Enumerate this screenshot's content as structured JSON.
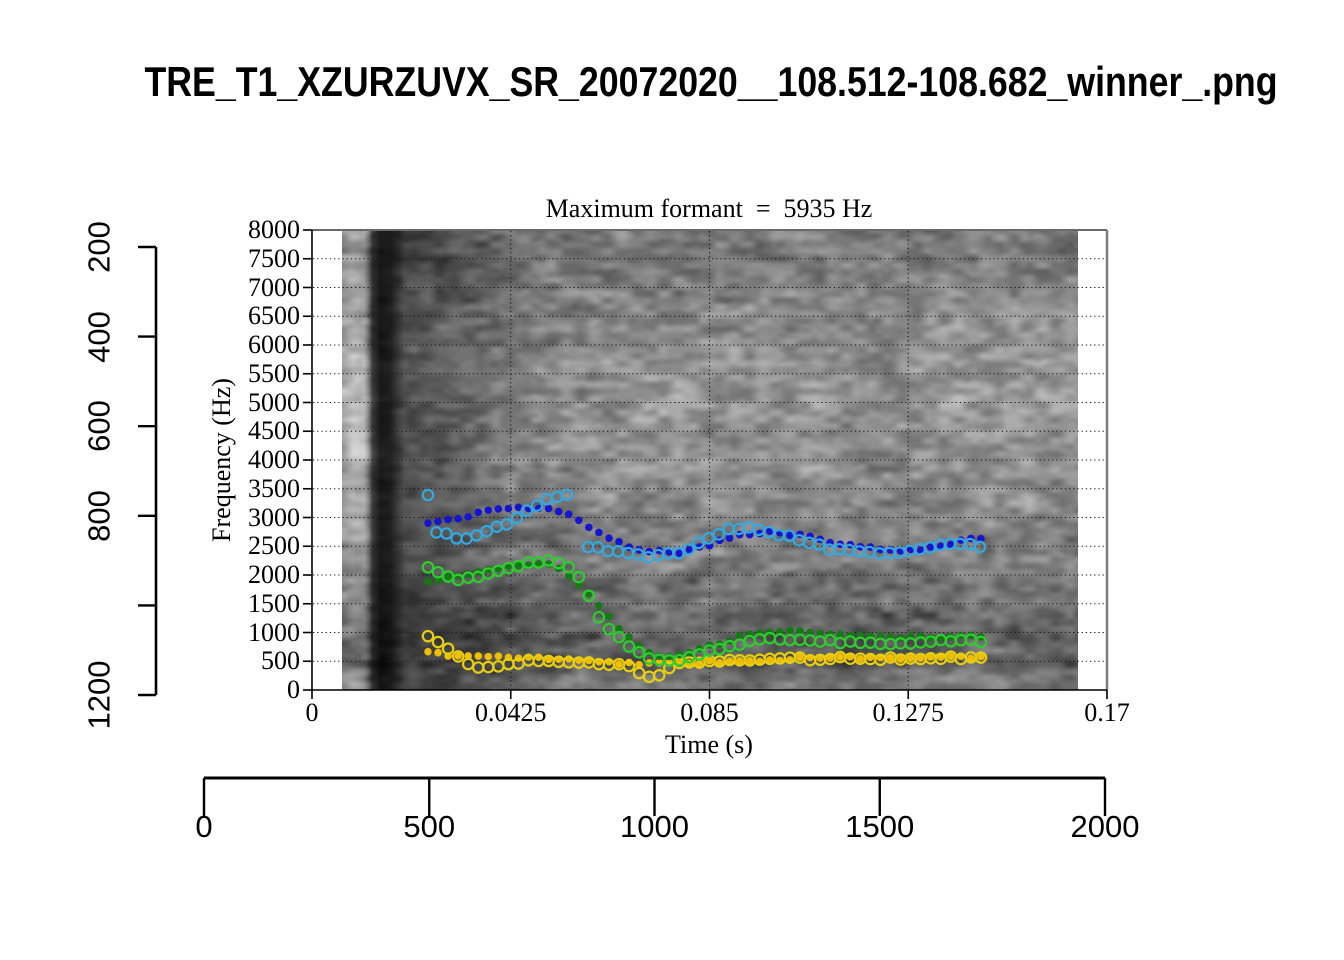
{
  "page_title": "TRE_T1_XZURZUVX_SR_20072020__108.512-108.682_winner_.png",
  "chart_data": {
    "type": "scatter",
    "title": "Maximum formant  =  5935 Hz",
    "max_formant_hz": 5935,
    "xlabel": "Time (s)",
    "ylabel": "Frequency (Hz)",
    "xlim": [
      0,
      0.17
    ],
    "ylim": [
      0,
      8000
    ],
    "x_ticks": [
      0,
      0.0425,
      0.085,
      0.1275,
      0.17
    ],
    "x_tick_labels": [
      "0",
      "0.0425",
      "0.085",
      "0.1275",
      "0.17"
    ],
    "y_ticks": [
      0,
      500,
      1000,
      1500,
      2000,
      2500,
      3000,
      3500,
      4000,
      4500,
      5000,
      5500,
      6000,
      6500,
      7000,
      7500,
      8000
    ],
    "y_tick_labels": [
      "0",
      "500",
      "1000",
      "1500",
      "2000",
      "2500",
      "3000",
      "3500",
      "4000",
      "4500",
      "5000",
      "5500",
      "6000",
      "6500",
      "7000",
      "7500",
      "8000"
    ],
    "grid": "dotted",
    "legend": "none",
    "background": {
      "kind": "grayscale-spectrogram",
      "time_range_s": [
        0.0066,
        0.1638
      ],
      "freq_range_hz": [
        0,
        8000
      ]
    },
    "dot_interval_s": 0.00215,
    "series": [
      {
        "name": "formant-track-yellow-filled",
        "marker": "filled",
        "color": "#f0be00",
        "segments": [
          [
            [
              0.0248,
              640
            ],
            [
              0.028,
              620
            ],
            [
              0.031,
              605
            ],
            [
              0.034,
              590
            ],
            [
              0.037,
              580
            ],
            [
              0.04,
              575
            ],
            [
              0.044,
              565
            ],
            [
              0.048,
              555
            ],
            [
              0.052,
              540
            ],
            [
              0.056,
              520
            ],
            [
              0.06,
              500
            ],
            [
              0.064,
              480
            ],
            [
              0.068,
              465
            ],
            [
              0.072,
              455
            ],
            [
              0.076,
              455
            ],
            [
              0.08,
              465
            ],
            [
              0.085,
              485
            ],
            [
              0.09,
              505
            ],
            [
              0.095,
              520
            ],
            [
              0.1,
              535
            ],
            [
              0.105,
              545
            ],
            [
              0.11,
              550
            ],
            [
              0.115,
              555
            ],
            [
              0.12,
              560
            ],
            [
              0.125,
              560
            ],
            [
              0.13,
              565
            ],
            [
              0.135,
              565
            ],
            [
              0.14,
              570
            ],
            [
              0.1445,
              575
            ]
          ]
        ]
      },
      {
        "name": "formant-track-yellow-open",
        "marker": "open",
        "color": "#e6cf10",
        "segments": [
          [
            [
              0.0248,
              920
            ],
            [
              0.0266,
              860
            ],
            [
              0.0284,
              760
            ],
            [
              0.0302,
              630
            ],
            [
              0.032,
              510
            ],
            [
              0.034,
              440
            ],
            [
              0.036,
              405
            ],
            [
              0.038,
              400
            ],
            [
              0.04,
              430
            ],
            [
              0.0425,
              465
            ],
            [
              0.045,
              490
            ],
            [
              0.048,
              505
            ],
            [
              0.051,
              515
            ],
            [
              0.055,
              505
            ],
            [
              0.059,
              485
            ],
            [
              0.063,
              465
            ],
            [
              0.066,
              450
            ],
            [
              0.068,
              430
            ],
            [
              0.0695,
              280
            ],
            [
              0.0713,
              230
            ],
            [
              0.0731,
              230
            ],
            [
              0.0749,
              255
            ],
            [
              0.077,
              450
            ],
            [
              0.08,
              490
            ],
            [
              0.084,
              505
            ],
            [
              0.088,
              515
            ],
            [
              0.092,
              525
            ],
            [
              0.096,
              530
            ],
            [
              0.1,
              535
            ],
            [
              0.105,
              540
            ],
            [
              0.11,
              545
            ],
            [
              0.115,
              550
            ],
            [
              0.12,
              550
            ],
            [
              0.125,
              555
            ],
            [
              0.13,
              555
            ],
            [
              0.135,
              560
            ],
            [
              0.14,
              565
            ],
            [
              0.1445,
              570
            ]
          ]
        ]
      },
      {
        "name": "formant-track-green-filled",
        "marker": "filled",
        "color": "#157a15",
        "segments": [
          [
            [
              0.0248,
              1870
            ],
            [
              0.027,
              1900
            ],
            [
              0.0295,
              1960
            ],
            [
              0.032,
              2010
            ],
            [
              0.035,
              2060
            ],
            [
              0.038,
              2110
            ],
            [
              0.041,
              2150
            ],
            [
              0.044,
              2180
            ],
            [
              0.047,
              2200
            ],
            [
              0.05,
              2190
            ],
            [
              0.0525,
              2130
            ],
            [
              0.055,
              1990
            ],
            [
              0.0573,
              1820
            ],
            [
              0.0594,
              1640
            ],
            [
              0.0612,
              1480
            ],
            [
              0.0633,
              1300
            ],
            [
              0.0652,
              1100
            ],
            [
              0.0674,
              930
            ],
            [
              0.0695,
              780
            ],
            [
              0.0712,
              680
            ],
            [
              0.074,
              590
            ],
            [
              0.077,
              560
            ],
            [
              0.08,
              610
            ],
            [
              0.083,
              700
            ],
            [
              0.086,
              790
            ],
            [
              0.089,
              870
            ],
            [
              0.092,
              930
            ],
            [
              0.095,
              980
            ],
            [
              0.098,
              1010
            ],
            [
              0.101,
              1030
            ],
            [
              0.105,
              1020
            ],
            [
              0.109,
              1000
            ],
            [
              0.113,
              970
            ],
            [
              0.118,
              950
            ],
            [
              0.123,
              930
            ],
            [
              0.128,
              920
            ],
            [
              0.133,
              930
            ],
            [
              0.138,
              940
            ],
            [
              0.1445,
              950
            ]
          ]
        ]
      },
      {
        "name": "formant-track-lightgreen-open",
        "marker": "open",
        "color": "#2ecc2e",
        "segments": [
          [
            [
              0.0248,
              2120
            ],
            [
              0.0265,
              2060
            ],
            [
              0.028,
              2000
            ],
            [
              0.03,
              1950
            ],
            [
              0.032,
              1920
            ],
            [
              0.034,
              1960
            ],
            [
              0.036,
              2000
            ],
            [
              0.0385,
              2040
            ],
            [
              0.041,
              2090
            ],
            [
              0.0435,
              2140
            ],
            [
              0.046,
              2200
            ],
            [
              0.0485,
              2240
            ],
            [
              0.051,
              2260
            ],
            [
              0.0535,
              2220
            ],
            [
              0.056,
              2100
            ],
            [
              0.058,
              1840
            ],
            [
              0.06,
              1500
            ],
            [
              0.0615,
              1250
            ],
            [
              0.063,
              1120
            ],
            [
              0.065,
              970
            ],
            [
              0.067,
              820
            ],
            [
              0.069,
              680
            ],
            [
              0.0715,
              570
            ],
            [
              0.074,
              520
            ],
            [
              0.077,
              520
            ],
            [
              0.08,
              550
            ],
            [
              0.083,
              610
            ],
            [
              0.086,
              690
            ],
            [
              0.089,
              770
            ],
            [
              0.0925,
              830
            ],
            [
              0.096,
              870
            ],
            [
              0.1,
              890
            ],
            [
              0.104,
              890
            ],
            [
              0.108,
              870
            ],
            [
              0.113,
              840
            ],
            [
              0.118,
              820
            ],
            [
              0.123,
              810
            ],
            [
              0.128,
              820
            ],
            [
              0.133,
              850
            ],
            [
              0.138,
              870
            ],
            [
              0.1445,
              840
            ]
          ]
        ]
      },
      {
        "name": "formant-track-blue-filled",
        "marker": "filled",
        "color": "#1515cf",
        "segments": [
          [
            [
              0.0248,
              2900
            ],
            [
              0.028,
              2950
            ],
            [
              0.032,
              3010
            ],
            [
              0.036,
              3080
            ],
            [
              0.04,
              3140
            ],
            [
              0.0435,
              3170
            ],
            [
              0.047,
              3180
            ],
            [
              0.05,
              3170
            ],
            [
              0.053,
              3120
            ],
            [
              0.056,
              3000
            ],
            [
              0.059,
              2860
            ],
            [
              0.062,
              2720
            ],
            [
              0.065,
              2590
            ],
            [
              0.068,
              2500
            ],
            [
              0.071,
              2440
            ],
            [
              0.074,
              2400
            ],
            [
              0.077,
              2380
            ],
            [
              0.08,
              2400
            ],
            [
              0.083,
              2470
            ],
            [
              0.086,
              2560
            ],
            [
              0.089,
              2640
            ],
            [
              0.092,
              2700
            ],
            [
              0.095,
              2730
            ],
            [
              0.098,
              2740
            ],
            [
              0.102,
              2720
            ],
            [
              0.106,
              2660
            ],
            [
              0.11,
              2590
            ],
            [
              0.114,
              2530
            ],
            [
              0.118,
              2480
            ],
            [
              0.122,
              2440
            ],
            [
              0.126,
              2420
            ],
            [
              0.129,
              2430
            ],
            [
              0.132,
              2470
            ],
            [
              0.135,
              2520
            ],
            [
              0.138,
              2570
            ],
            [
              0.141,
              2620
            ],
            [
              0.1445,
              2660
            ]
          ]
        ]
      },
      {
        "name": "formant-track-lightblue-open",
        "marker": "open",
        "color": "#35a8e0",
        "segments": [
          [
            [
              0.0248,
              3390
            ]
          ],
          [
            [
              0.0266,
              2760
            ],
            [
              0.0284,
              2720
            ],
            [
              0.0302,
              2670
            ],
            [
              0.032,
              2630
            ],
            [
              0.034,
              2650
            ],
            [
              0.036,
              2700
            ],
            [
              0.038,
              2760
            ],
            [
              0.04,
              2840
            ],
            [
              0.0425,
              2940
            ],
            [
              0.045,
              3060
            ],
            [
              0.0475,
              3180
            ],
            [
              0.05,
              3290
            ],
            [
              0.0525,
              3360
            ],
            [
              0.0545,
              3390
            ],
            [
              0.0565,
              3400
            ]
          ],
          [
            [
              0.059,
              2500
            ],
            [
              0.062,
              2450
            ],
            [
              0.065,
              2400
            ],
            [
              0.068,
              2360
            ],
            [
              0.071,
              2330
            ],
            [
              0.074,
              2320
            ],
            [
              0.077,
              2360
            ],
            [
              0.08,
              2450
            ],
            [
              0.083,
              2570
            ],
            [
              0.086,
              2690
            ],
            [
              0.089,
              2780
            ],
            [
              0.092,
              2810
            ],
            [
              0.095,
              2800
            ],
            [
              0.098,
              2750
            ],
            [
              0.102,
              2660
            ],
            [
              0.106,
              2560
            ],
            [
              0.11,
              2470
            ],
            [
              0.114,
              2420
            ],
            [
              0.118,
              2390
            ],
            [
              0.122,
              2390
            ],
            [
              0.126,
              2410
            ],
            [
              0.13,
              2460
            ],
            [
              0.134,
              2530
            ],
            [
              0.137,
              2560
            ],
            [
              0.14,
              2540
            ],
            [
              0.1425,
              2490
            ],
            [
              0.144,
              2460
            ]
          ]
        ]
      }
    ],
    "outer_left_axis": {
      "range": [
        200,
        1200
      ],
      "ticks": [
        200,
        400,
        600,
        800,
        1000,
        1200
      ],
      "labels": [
        "200",
        "400",
        "600",
        "800",
        "",
        "1200"
      ]
    },
    "outer_bottom_axis": {
      "range": [
        0,
        2000
      ],
      "ticks": [
        0,
        500,
        1000,
        1500,
        2000
      ],
      "labels": [
        "0",
        "500",
        "1000",
        "1500",
        "2000"
      ]
    }
  }
}
